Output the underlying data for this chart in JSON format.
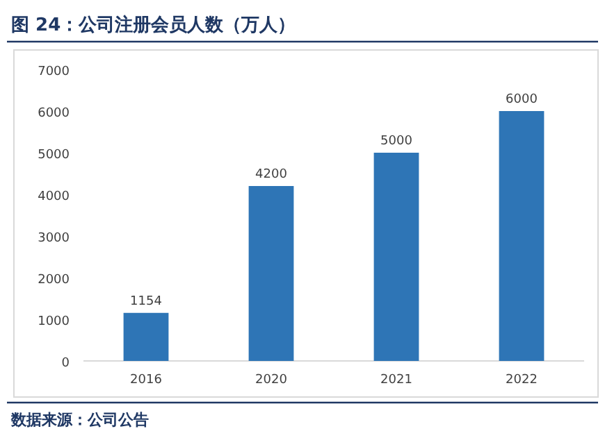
{
  "chart_data": {
    "type": "bar",
    "title": "图 24：公司注册会员人数（万人）",
    "categories": [
      "2016",
      "2020",
      "2021",
      "2022"
    ],
    "values": [
      1154,
      4200,
      5000,
      6000
    ],
    "color": "#2e75b6",
    "ylim": [
      0,
      7000
    ],
    "yticks": [
      0,
      1000,
      2000,
      3000,
      4000,
      5000,
      6000,
      7000
    ],
    "data_labels": true,
    "grid": false,
    "annotations": [
      "数据来源：公司公告"
    ]
  }
}
